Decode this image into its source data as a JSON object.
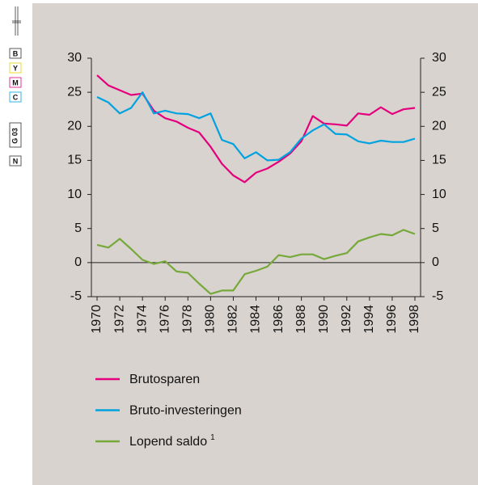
{
  "print_marks": [
    "B",
    "Y",
    "M",
    "C",
    "G 03",
    "N"
  ],
  "chart_data": {
    "type": "line",
    "x": [
      1970,
      1971,
      1972,
      1973,
      1974,
      1975,
      1976,
      1977,
      1978,
      1979,
      1980,
      1981,
      1982,
      1983,
      1984,
      1985,
      1986,
      1987,
      1988,
      1989,
      1990,
      1991,
      1992,
      1993,
      1994,
      1995,
      1996,
      1997,
      1998
    ],
    "series": [
      {
        "name": "Brutosparen",
        "color": "#e4007c",
        "values": [
          27.5,
          26,
          25.3,
          24.6,
          24.8,
          22.3,
          21.2,
          20.7,
          19.8,
          19.1,
          17,
          14.5,
          12.8,
          11.8,
          13.2,
          13.8,
          14.8,
          16,
          17.8,
          21.5,
          20.4,
          20.3,
          20.1,
          21.9,
          21.7,
          22.8,
          21.8,
          22.5,
          22.7
        ]
      },
      {
        "name": "Bruto-investeringen",
        "color": "#00a3e0",
        "values": [
          24.3,
          23.5,
          21.9,
          22.7,
          25,
          21.9,
          22.3,
          21.9,
          21.8,
          21.2,
          21.9,
          18,
          17.4,
          15.3,
          16.2,
          15,
          15.1,
          16.2,
          18.2,
          19.4,
          20.3,
          18.9,
          18.8,
          17.8,
          17.5,
          17.9,
          17.7,
          17.7,
          18.2
        ]
      },
      {
        "name": "Lopend saldo",
        "note": "1",
        "color": "#76a83a",
        "values": [
          2.6,
          2.2,
          3.5,
          2,
          0.4,
          -0.2,
          0.2,
          -1.3,
          -1.5,
          -3.1,
          -4.6,
          -4.1,
          -4.1,
          -1.7,
          -1.2,
          -0.6,
          1.1,
          0.8,
          1.2,
          1.2,
          0.5,
          1,
          1.4,
          3.1,
          3.7,
          4.2,
          4,
          4.8,
          4.2
        ]
      }
    ],
    "xlim": [
      1969.5,
      1998.5
    ],
    "xticks": [
      1970,
      1972,
      1974,
      1976,
      1978,
      1980,
      1982,
      1984,
      1986,
      1988,
      1990,
      1992,
      1994,
      1996,
      1998
    ],
    "ylim": [
      -5,
      30
    ],
    "yticks": [
      -5,
      0,
      5,
      10,
      15,
      20,
      25,
      30
    ],
    "y2lim": [
      -5,
      30
    ],
    "y2ticks": [
      -5,
      0,
      5,
      10,
      15,
      20,
      25,
      30
    ]
  }
}
